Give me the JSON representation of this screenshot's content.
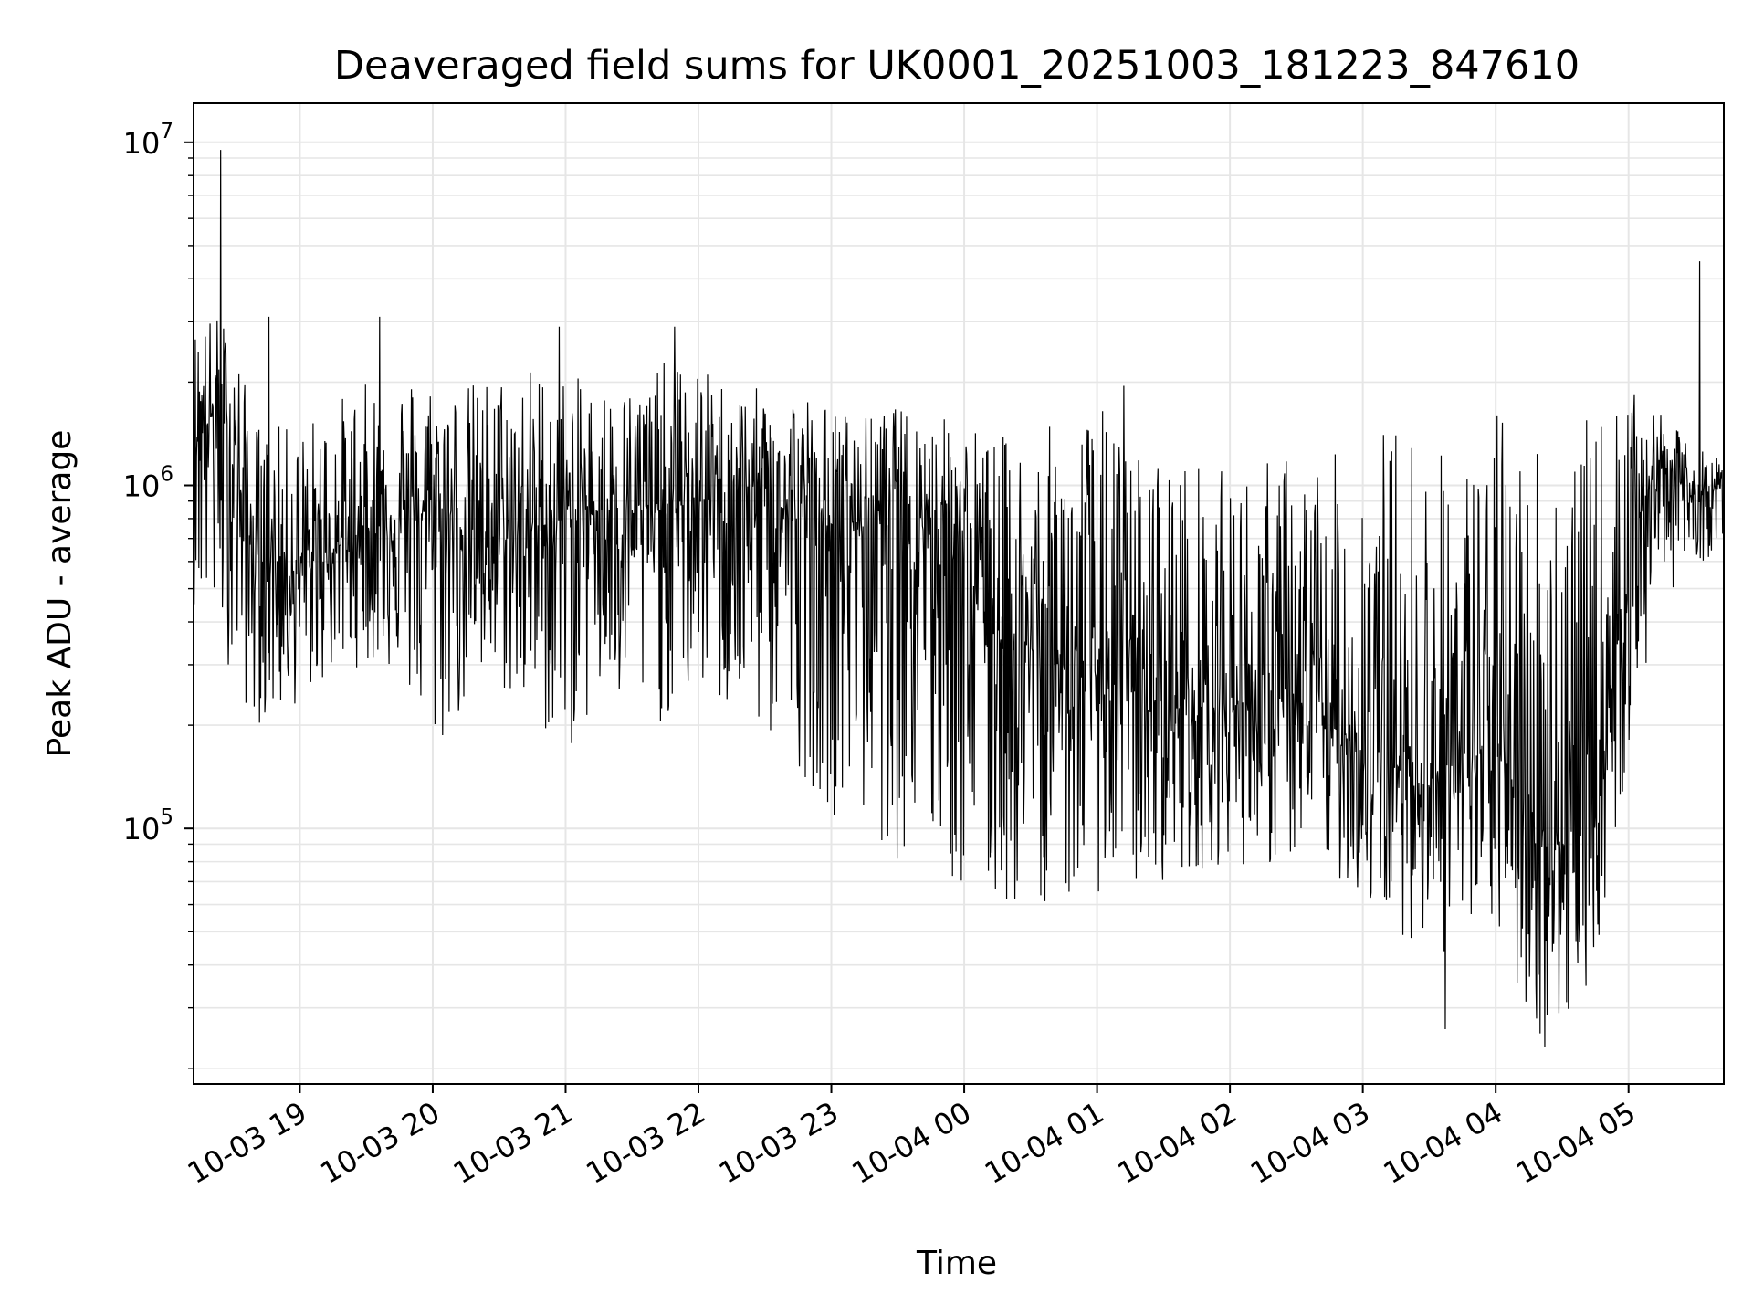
{
  "chart_data": {
    "type": "line",
    "title": "Deaveraged field sums for UK0001_20251003_181223_847610",
    "xlabel": "Time",
    "ylabel": "Peak ADU - average",
    "yscale": "log",
    "ylim": [
      18000,
      13000000
    ],
    "xlim": [
      "10-03 18:12",
      "10-04 05:43"
    ],
    "grid": true,
    "line_color": "#000000",
    "x_ticks": [
      "10-03 19",
      "10-03 20",
      "10-03 21",
      "10-03 22",
      "10-03 23",
      "10-04 00",
      "10-04 01",
      "10-04 02",
      "10-04 03",
      "10-04 04",
      "10-04 05"
    ],
    "y_ticks": [
      {
        "base": "10",
        "exp": "5",
        "value": 100000
      },
      {
        "base": "10",
        "exp": "6",
        "value": 1000000
      },
      {
        "base": "10",
        "exp": "7",
        "value": 10000000
      }
    ],
    "series": [
      {
        "x": [
          "10-03 18:12",
          "10-03 18:22",
          "10-03 18:30",
          "10-03 18:38",
          "10-03 18:45",
          "10-03 19:00",
          "10-03 19:15",
          "10-03 19:30",
          "10-03 19:45",
          "10-03 20:00",
          "10-03 20:15",
          "10-03 20:30",
          "10-03 20:45",
          "10-03 21:00",
          "10-03 21:15",
          "10-03 21:30",
          "10-03 21:45",
          "10-03 22:00",
          "10-03 22:15",
          "10-03 22:30",
          "10-03 22:45",
          "10-03 23:00",
          "10-03 23:15",
          "10-03 23:30",
          "10-03 23:45",
          "10-04 00:00",
          "10-04 00:15",
          "10-04 00:30",
          "10-04 00:45",
          "10-04 01:00",
          "10-04 01:15",
          "10-04 01:30",
          "10-04 01:45",
          "10-04 02:00",
          "10-04 02:15",
          "10-04 02:30",
          "10-04 02:45",
          "10-04 03:00",
          "10-04 03:15",
          "10-04 03:30",
          "10-04 03:45",
          "10-04 04:00",
          "10-04 04:15",
          "10-04 04:30",
          "10-04 04:45",
          "10-04 05:00",
          "10-04 05:15",
          "10-04 05:30",
          "10-04 05:43"
        ],
        "values": [
          1500000,
          1600000,
          1200000,
          650000,
          600000,
          550000,
          650000,
          750000,
          800000,
          850000,
          750000,
          700000,
          750000,
          800000,
          850000,
          850000,
          850000,
          900000,
          950000,
          900000,
          800000,
          750000,
          800000,
          900000,
          850000,
          600000,
          380000,
          330000,
          300000,
          280000,
          250000,
          230000,
          220000,
          230000,
          240000,
          220000,
          200000,
          170000,
          150000,
          140000,
          160000,
          170000,
          110000,
          90000,
          100000,
          700000,
          1200000,
          900000,
          1000000
        ],
        "low": [
          450000,
          350000,
          280000,
          200000,
          200000,
          230000,
          280000,
          300000,
          280000,
          150000,
          220000,
          250000,
          200000,
          160000,
          220000,
          200000,
          200000,
          250000,
          200000,
          180000,
          150000,
          110000,
          100000,
          80000,
          75000,
          60000,
          55000,
          60000,
          60000,
          65000,
          65000,
          70000,
          75000,
          80000,
          75000,
          80000,
          75000,
          60000,
          50000,
          45000,
          40000,
          50000,
          25000,
          24000,
          40000,
          150000,
          480000,
          550000,
          700000
        ],
        "high": [
          3000000,
          3200000,
          3000000,
          1600000,
          1500000,
          1500000,
          1800000,
          2000000,
          2200000,
          2100000,
          2000000,
          2200000,
          2300000,
          2100000,
          2000000,
          2000000,
          2300000,
          2200000,
          2000000,
          1900000,
          2000000,
          1700000,
          1600000,
          1700000,
          1600000,
          1600000,
          1400000,
          1500000,
          1500000,
          1800000,
          1300000,
          1300000,
          1200000,
          1100000,
          1200000,
          1300000,
          1200000,
          1500000,
          1600000,
          1400000,
          1200000,
          1700000,
          1600000,
          1500000,
          1600000,
          1900000,
          1600000,
          1300000,
          1200000
        ],
        "spikes": [
          {
            "x": "10-03 18:24",
            "value": 9500000
          },
          {
            "x": "10-03 18:46",
            "value": 3100000
          },
          {
            "x": "10-03 19:36",
            "value": 3100000
          },
          {
            "x": "10-03 20:57",
            "value": 2900000
          },
          {
            "x": "10-03 21:49",
            "value": 2900000
          },
          {
            "x": "10-04 01:12",
            "value": 1950000
          },
          {
            "x": "10-04 03:37",
            "value": 26000
          },
          {
            "x": "10-04 04:22",
            "value": 23000
          },
          {
            "x": "10-04 05:32",
            "value": 4500000
          }
        ]
      }
    ]
  }
}
